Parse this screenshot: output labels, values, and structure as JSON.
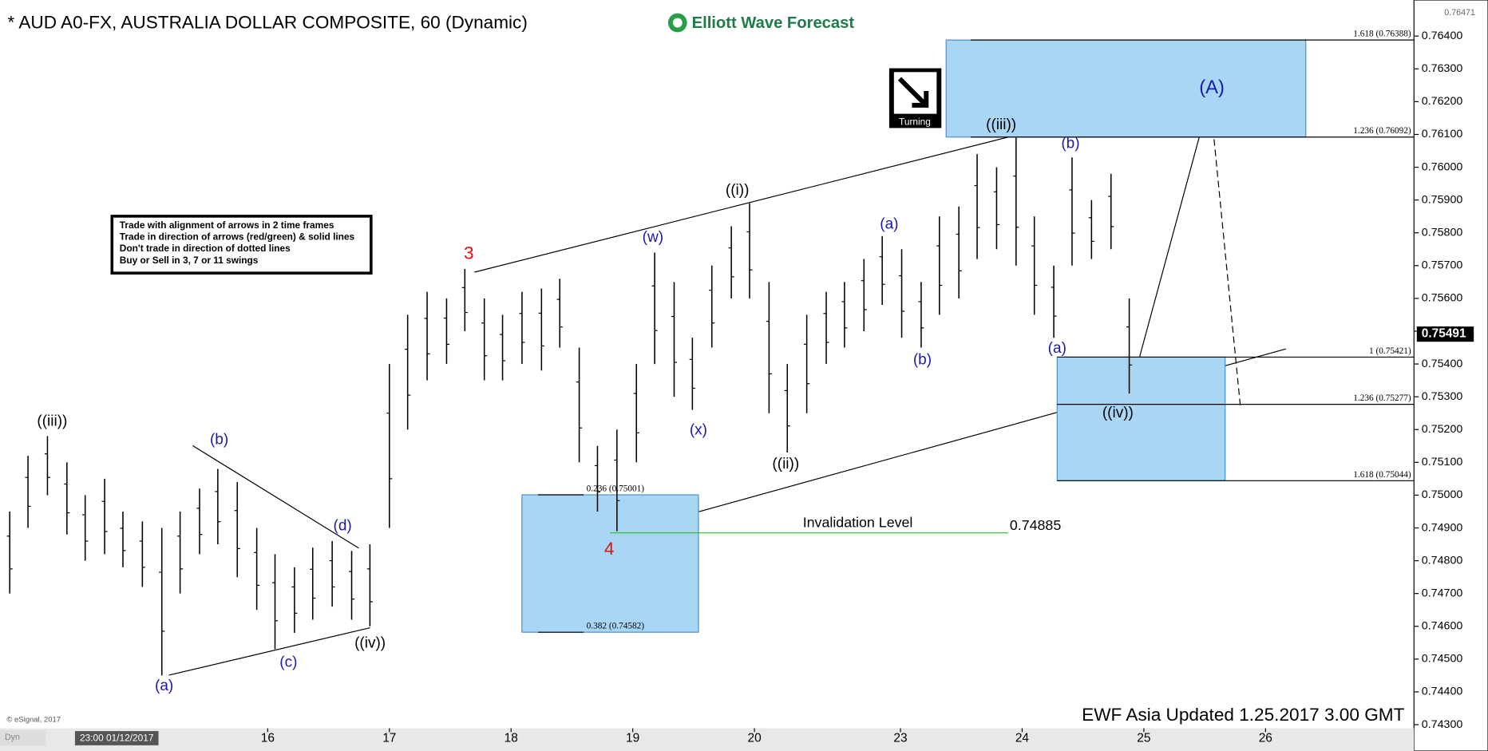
{
  "chart_data": {
    "type": "hilo",
    "title": "* AUD A0-FX, AUSTRALIA DOLLAR COMPOSITE, 60 (Dynamic)",
    "brand": "Elliott Wave Forecast",
    "badge": "Turning",
    "footer": "EWF Asia Updated 1.25.2017 3.00 GMT",
    "copyright": "© eSignal, 2017",
    "x_start_label": "23:00 01/12/2017",
    "mode_label": "Dyn",
    "notes": [
      "Trade with alignment of arrows in 2 time frames",
      "Trade in direction of arrows (red/green) & solid lines",
      "Don't trade in direction of dotted lines",
      "Buy or Sell in 3, 7 or 11 swings"
    ],
    "color": "#000000",
    "xlim": [
      13.8,
      25.42
    ],
    "xticks": [
      16,
      17,
      18,
      19,
      20,
      {
        "value": 21.2,
        "label": "23"
      },
      {
        "value": 22.2,
        "label": "24"
      },
      {
        "value": 23.2,
        "label": "25"
      },
      {
        "value": 24.2,
        "label": "26"
      }
    ],
    "ylim": [
      0.7424,
      0.7651
    ],
    "yticks": [
      {
        "value": 0.743,
        "label": "0.74300"
      },
      {
        "value": 0.744,
        "label": "0.74400"
      },
      {
        "value": 0.745,
        "label": "0.74500"
      },
      {
        "value": 0.746,
        "label": "0.74600"
      },
      {
        "value": 0.747,
        "label": "0.74700"
      },
      {
        "value": 0.748,
        "label": "0.74800"
      },
      {
        "value": 0.749,
        "label": "0.74900"
      },
      {
        "value": 0.75,
        "label": "0.75000"
      },
      {
        "value": 0.751,
        "label": "0.75100"
      },
      {
        "value": 0.752,
        "label": "0.75200"
      },
      {
        "value": 0.753,
        "label": "0.75300"
      },
      {
        "value": 0.754,
        "label": "0.75400"
      },
      {
        "value": 0.755,
        "label": "0.75500"
      },
      {
        "value": 0.756,
        "label": "0.75600"
      },
      {
        "value": 0.757,
        "label": "0.75700"
      },
      {
        "value": 0.758,
        "label": "0.75800"
      },
      {
        "value": 0.759,
        "label": "0.75900"
      },
      {
        "value": 0.76,
        "label": "0.76000"
      },
      {
        "value": 0.761,
        "label": "0.76100"
      },
      {
        "value": 0.762,
        "label": "0.76200"
      },
      {
        "value": 0.763,
        "label": "0.76300"
      },
      {
        "value": 0.764,
        "label": "0.76400"
      }
    ],
    "axis_top": 0.76471,
    "last_price": 0.75491,
    "x": [
      13.88,
      14.03,
      14.19,
      14.35,
      14.5,
      14.66,
      14.81,
      14.97,
      15.13,
      15.28,
      15.44,
      15.59,
      15.75,
      15.91,
      16.06,
      16.22,
      16.37,
      16.53,
      16.69,
      16.84,
      17.0,
      17.15,
      17.31,
      17.47,
      17.62,
      17.78,
      17.93,
      18.09,
      18.25,
      18.4,
      18.56,
      18.71,
      18.87,
      19.03,
      19.18,
      19.34,
      19.49,
      19.65,
      19.81,
      19.96,
      20.12,
      20.27,
      20.43,
      20.59,
      20.74,
      20.9,
      21.05,
      21.21,
      21.37,
      21.52,
      21.68,
      21.83,
      21.99,
      22.15,
      22.3,
      22.46,
      22.61,
      22.77,
      22.93,
      23.08
    ],
    "high": [
      0.7495,
      0.7512,
      0.7518,
      0.751,
      0.75,
      0.7505,
      0.7495,
      0.7492,
      0.749,
      0.7495,
      0.7502,
      0.7508,
      0.7504,
      0.749,
      0.7482,
      0.7478,
      0.7484,
      0.7486,
      0.7483,
      0.7485,
      0.754,
      0.7555,
      0.7562,
      0.756,
      0.7569,
      0.756,
      0.7555,
      0.7562,
      0.7563,
      0.7566,
      0.7545,
      0.7515,
      0.752,
      0.754,
      0.7574,
      0.7565,
      0.7548,
      0.757,
      0.7582,
      0.7589,
      0.7565,
      0.754,
      0.7555,
      0.7562,
      0.7565,
      0.7572,
      0.7579,
      0.7575,
      0.7565,
      0.7585,
      0.7588,
      0.7604,
      0.76,
      0.7609,
      0.7585,
      0.757,
      0.7603,
      0.759,
      0.7598,
      0.756
    ],
    "low": [
      0.747,
      0.749,
      0.75,
      0.7488,
      0.748,
      0.7482,
      0.7478,
      0.7472,
      0.7445,
      0.747,
      0.7482,
      0.7485,
      0.7475,
      0.7465,
      0.7453,
      0.7458,
      0.7462,
      0.7466,
      0.7462,
      0.746,
      0.749,
      0.752,
      0.7535,
      0.754,
      0.755,
      0.7535,
      0.7535,
      0.754,
      0.7538,
      0.7545,
      0.751,
      0.7495,
      0.7489,
      0.751,
      0.754,
      0.753,
      0.7526,
      0.7545,
      0.756,
      0.756,
      0.7525,
      0.7513,
      0.7525,
      0.754,
      0.7545,
      0.755,
      0.7558,
      0.7548,
      0.7545,
      0.7555,
      0.756,
      0.7572,
      0.7575,
      0.757,
      0.7555,
      0.7548,
      0.757,
      0.7572,
      0.7575,
      0.7531
    ],
    "fib_levels": [
      {
        "value": 0.76388,
        "label": "1.618 (0.76388)"
      },
      {
        "value": 0.76092,
        "label": "1.236 (0.76092)"
      },
      {
        "value": 0.75421,
        "label": "1 (0.75421)"
      },
      {
        "value": 0.75277,
        "label": "1.236 (0.75277)"
      },
      {
        "value": 0.75044,
        "label": "1.618 (0.75044)"
      },
      {
        "value": 0.75001,
        "label": "0.236 (0.75001)"
      },
      {
        "value": 0.74582,
        "label": "0.382 (0.74582)"
      }
    ],
    "invalidation": {
      "label": "Invalidation Level",
      "value": 0.74885,
      "color": "#22bb22"
    },
    "wave_labels": [
      {
        "text": "((iii))",
        "color": "#000000"
      },
      {
        "text": "(b)",
        "color": "#1a1aa8"
      },
      {
        "text": "(d)",
        "color": "#1a1aa8"
      },
      {
        "text": "(a)",
        "color": "#1a1aa8"
      },
      {
        "text": "(c)",
        "color": "#1a1aa8"
      },
      {
        "text": "((iv))",
        "color": "#000000"
      },
      {
        "text": "3",
        "color": "#dd1111"
      },
      {
        "text": "4",
        "color": "#dd1111"
      },
      {
        "text": "(w)",
        "color": "#1a1aa8"
      },
      {
        "text": "(x)",
        "color": "#1a1aa8"
      },
      {
        "text": "((i))",
        "color": "#000000"
      },
      {
        "text": "((ii))",
        "color": "#000000"
      },
      {
        "text": "(a)",
        "color": "#1a1aa8"
      },
      {
        "text": "(b)",
        "color": "#1a1aa8"
      },
      {
        "text": "((iii))",
        "color": "#000000"
      },
      {
        "text": "(b)",
        "color": "#1a1aa8"
      },
      {
        "text": "(a)",
        "color": "#1a1aa8"
      },
      {
        "text": "((iv))",
        "color": "#000000"
      },
      {
        "text": "(A)",
        "color": "#1a1aa8"
      }
    ]
  }
}
